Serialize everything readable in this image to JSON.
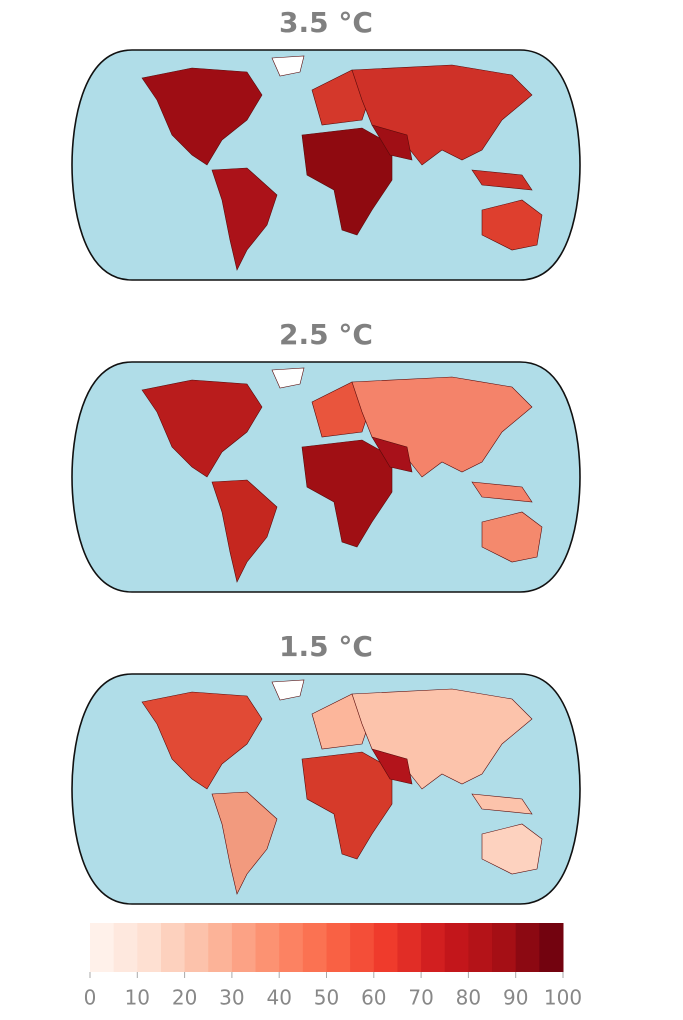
{
  "maps": [
    {
      "title": "3.5 °C"
    },
    {
      "title": "2.5 °C"
    },
    {
      "title": "1.5 °C"
    }
  ],
  "colorbar": {
    "range": [
      0,
      100
    ],
    "ticks": [
      0,
      10,
      20,
      30,
      40,
      50,
      60,
      70,
      80,
      90,
      100
    ]
  }
}
